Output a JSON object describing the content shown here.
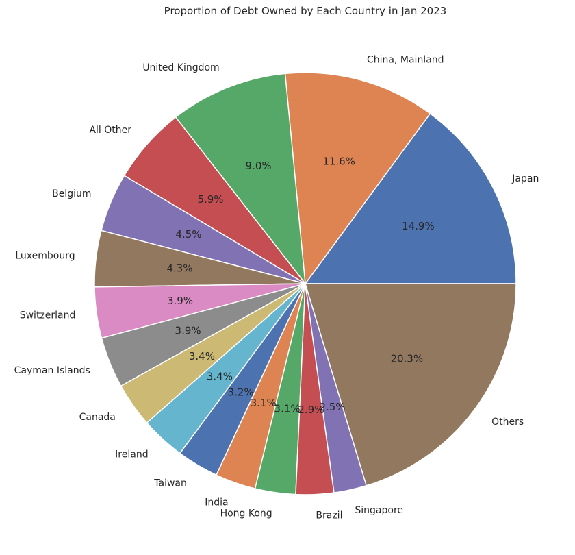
{
  "chart_data": {
    "type": "pie",
    "title": "Proportion of Debt Owned by Each Country in Jan 2023",
    "start_angle_deg": 0,
    "direction": "counterclockwise",
    "slices": [
      {
        "label": "Japan",
        "value": 14.9,
        "pct_label": "14.9%",
        "color": "#4c72b0"
      },
      {
        "label": "China, Mainland",
        "value": 11.6,
        "pct_label": "11.6%",
        "color": "#dd8452"
      },
      {
        "label": "United Kingdom",
        "value": 9.0,
        "pct_label": "9.0%",
        "color": "#55a868"
      },
      {
        "label": "All Other",
        "value": 5.9,
        "pct_label": "5.9%",
        "color": "#c44e52"
      },
      {
        "label": "Belgium",
        "value": 4.5,
        "pct_label": "4.5%",
        "color": "#8172b3"
      },
      {
        "label": "Luxembourg",
        "value": 4.3,
        "pct_label": "4.3%",
        "color": "#937860"
      },
      {
        "label": "Switzerland",
        "value": 3.9,
        "pct_label": "3.9%",
        "color": "#da8bc3"
      },
      {
        "label": "Cayman Islands",
        "value": 3.9,
        "pct_label": "3.9%",
        "color": "#8c8c8c"
      },
      {
        "label": "Canada",
        "value": 3.4,
        "pct_label": "3.4%",
        "color": "#ccb974"
      },
      {
        "label": "Ireland",
        "value": 3.4,
        "pct_label": "3.4%",
        "color": "#64b5cd"
      },
      {
        "label": "Taiwan",
        "value": 3.2,
        "pct_label": "3.2%",
        "color": "#4c72b0"
      },
      {
        "label": "India",
        "value": 3.1,
        "pct_label": "3.1%",
        "color": "#dd8452"
      },
      {
        "label": "Hong Kong",
        "value": 3.1,
        "pct_label": "3.1%",
        "color": "#55a868"
      },
      {
        "label": "Brazil",
        "value": 2.9,
        "pct_label": "2.9%",
        "color": "#c44e52"
      },
      {
        "label": "Singapore",
        "value": 2.5,
        "pct_label": "2.5%",
        "color": "#8172b3"
      },
      {
        "label": "Others",
        "value": 20.3,
        "pct_label": "20.3%",
        "color": "#937860"
      }
    ]
  }
}
